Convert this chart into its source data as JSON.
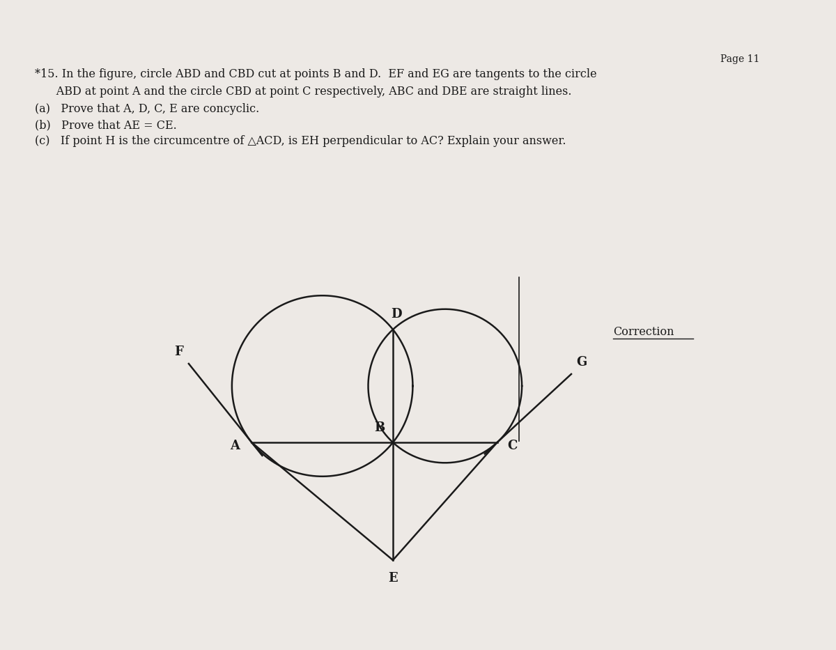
{
  "bg_color": "#ede9e5",
  "page_color": "#f5f2ef",
  "title_text": "*15. In the figure, circle ABD and CBD cut at points B and D.  EF and EG are tangents to the circle",
  "line2_text": "      ABD at point A and the circle CBD at point C respectively, ABC and DBE are straight lines.",
  "part_a": "(a)   Prove that A, D, C, E are concyclic.",
  "part_b": "(b)   Prove that AE = CE.",
  "part_c": "(c)   If point H is the circumcentre of △ACD, is EH perpendicular to AC? Explain your answer.",
  "page_label": "Page 11",
  "correction_text": "Correction",
  "line_color": "#1a1a1a",
  "text_color": "#1a1a1a",
  "point_A": [
    -2.1,
    -0.3
  ],
  "point_B": [
    0.0,
    -0.3
  ],
  "point_C": [
    1.55,
    -0.3
  ],
  "point_D": [
    0.0,
    1.38
  ],
  "point_E": [
    0.0,
    -2.05
  ]
}
